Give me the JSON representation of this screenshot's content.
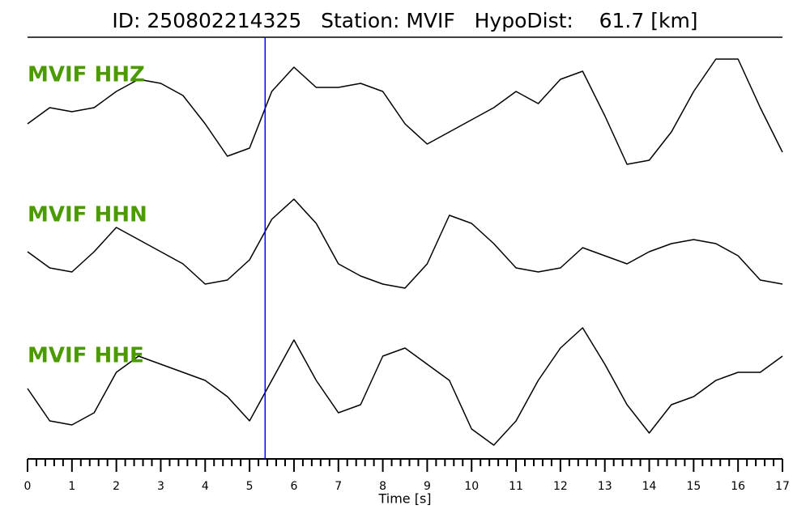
{
  "chart_data": {
    "type": "line",
    "title": "ID: 250802214325   Station: MVIF   HypoDist:    61.7 [km]",
    "xlabel": "Time [s]",
    "xlim": [
      0,
      17
    ],
    "xticks": [
      0,
      1,
      2,
      3,
      4,
      5,
      6,
      7,
      8,
      9,
      10,
      11,
      12,
      13,
      14,
      15,
      16,
      17
    ],
    "xminorticks": [
      0.2,
      0.4,
      0.6,
      0.8,
      1.2,
      1.4,
      1.6,
      1.8,
      2.2,
      2.4,
      2.6,
      2.8,
      3.2,
      3.4,
      3.6,
      3.8,
      4.2,
      4.4,
      4.6,
      4.8,
      5.2,
      5.4,
      5.6,
      5.8,
      6.2,
      6.4,
      6.6,
      6.8,
      7.2,
      7.4,
      7.6,
      7.8,
      8.2,
      8.4,
      8.6,
      8.8,
      9.2,
      9.4,
      9.6,
      9.8,
      10.2,
      10.4,
      10.6,
      10.8,
      11.2,
      11.4,
      11.6,
      11.8,
      12.2,
      12.4,
      12.6,
      12.8,
      13.2,
      13.4,
      13.6,
      13.8,
      14.2,
      14.4,
      14.6,
      14.8,
      15.2,
      15.4,
      15.6,
      15.8,
      16.2,
      16.4,
      16.6,
      16.8
    ],
    "ylim": [
      -85,
      85
    ],
    "pick": {
      "x": 5.35,
      "color": "#0000ff"
    },
    "label_color": "#4a9a00",
    "x": [
      0,
      0.5,
      1,
      1.5,
      2,
      2.5,
      3,
      3.5,
      4,
      4.5,
      5,
      5.5,
      6,
      6.5,
      7,
      7.5,
      8,
      8.5,
      9,
      9.5,
      10,
      10.5,
      11,
      11.5,
      12,
      12.5,
      13,
      13.5,
      14,
      14.5,
      15,
      15.5,
      16,
      16.5,
      17
    ],
    "series": [
      {
        "name": "MVIF HHZ",
        "color": "#000000",
        "values": [
          -20,
          0,
          -5,
          0,
          20,
          35,
          30,
          15,
          -20,
          -60,
          -50,
          20,
          50,
          25,
          25,
          30,
          20,
          -20,
          -45,
          -30,
          -15,
          0,
          20,
          5,
          35,
          45,
          -10,
          -70,
          -65,
          -30,
          20,
          60,
          60,
          0,
          -55
        ]
      },
      {
        "name": "MVIF HHN",
        "color": "#000000",
        "values": [
          -5,
          -25,
          -30,
          -5,
          25,
          10,
          -5,
          -20,
          -45,
          -40,
          -15,
          35,
          60,
          30,
          -20,
          -35,
          -45,
          -50,
          -20,
          40,
          30,
          5,
          -25,
          -30,
          -25,
          0,
          -10,
          -20,
          -5,
          5,
          10,
          5,
          -10,
          -40,
          -45
        ]
      },
      {
        "name": "MVIF HHE",
        "color": "#000000",
        "values": [
          0,
          -40,
          -45,
          -30,
          20,
          40,
          30,
          20,
          10,
          -10,
          -40,
          10,
          60,
          10,
          -30,
          -20,
          40,
          50,
          30,
          10,
          -50,
          -70,
          -40,
          10,
          50,
          75,
          30,
          -20,
          -55,
          -20,
          -10,
          10,
          20,
          20,
          40
        ]
      }
    ]
  }
}
